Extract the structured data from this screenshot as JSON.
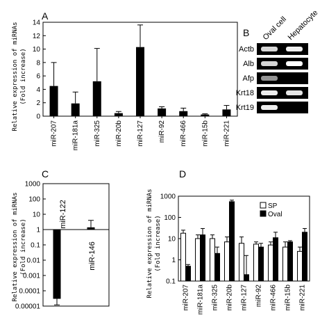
{
  "panel_labels": [
    "A",
    "B",
    "C",
    "D"
  ],
  "y_axis_label_line1": "Relative expression of miRNAs",
  "y_axis_label_line2": "(Fold increase)",
  "chart_data": [
    {
      "id": "A",
      "type": "bar",
      "categories": [
        "miR-207",
        "miR-181a",
        "miR-325",
        "miR-20b",
        "miR-127",
        "miR-92",
        "miR-466",
        "miR-15b",
        "miR-221"
      ],
      "values": [
        4.5,
        1.9,
        5.2,
        0.45,
        10.3,
        1.15,
        0.75,
        0.25,
        1.0
      ],
      "errors": [
        3.5,
        1.7,
        4.9,
        0.25,
        3.3,
        0.25,
        0.45,
        0.1,
        0.6
      ],
      "ylim": [
        0,
        14
      ],
      "yticks": [
        "0",
        "2",
        "4",
        "6",
        "8",
        "10",
        "12",
        "14"
      ],
      "ylabel": "Relative expression of miRNAs (Fold increase)",
      "color": "#000000"
    },
    {
      "id": "B",
      "type": "table",
      "columns": [
        "Oval cell",
        "Hepatocyte"
      ],
      "rows": [
        "Actb",
        "Alb",
        "Afp",
        "Krt18",
        "Krt19"
      ],
      "bands": [
        [
          0.75,
          0.9
        ],
        [
          0.75,
          1.0
        ],
        [
          0.35,
          0.0
        ],
        [
          0.9,
          0.85
        ],
        [
          0.9,
          0.0
        ]
      ]
    },
    {
      "id": "C",
      "type": "bar",
      "scale": "log",
      "baseline": 1,
      "categories": [
        "miR-122",
        "miR-146"
      ],
      "values": [
        3e-05,
        1.4
      ],
      "errors_low": [
        1.8e-05,
        0.4
      ],
      "errors_high": [
        3e-05,
        2.6
      ],
      "ylim": [
        1e-05,
        1000
      ],
      "yticks": [
        "1000",
        "100",
        "10",
        "1",
        "0.1",
        "0.01",
        "0.001",
        "0.0001",
        "0.00001"
      ],
      "ylabel": "Relative expression of miRNAs (Fold increase)",
      "color": "#000000"
    },
    {
      "id": "D",
      "type": "bar",
      "scale": "log",
      "categories": [
        "miR-207",
        "miR-181a",
        "miR-325",
        "miR-20b",
        "miR-127",
        "miR-92",
        "miR-466",
        "miR-15b",
        "miR-221"
      ],
      "series": [
        {
          "name": "SP",
          "values": [
            18,
            10,
            10,
            7,
            6,
            5.5,
            5,
            4,
            2.5
          ],
          "errors": [
            25,
            15,
            15,
            12,
            12,
            7,
            7,
            7,
            4
          ],
          "color": "#ffffff"
        },
        {
          "name": "Oval",
          "values": [
            0.5,
            15,
            2,
            550,
            0.2,
            4,
            11,
            7,
            20
          ],
          "errors": [
            0.6,
            30,
            4,
            650,
            1.6,
            6,
            20,
            8,
            30
          ],
          "color": "#000000"
        }
      ],
      "ylim": [
        0.1,
        1000
      ],
      "yticks": [
        "1000",
        "100",
        "10",
        "1",
        "0.1"
      ],
      "ylabel": "Relative expression of miRNAs (Fold increase)",
      "legend": "top-right"
    }
  ]
}
